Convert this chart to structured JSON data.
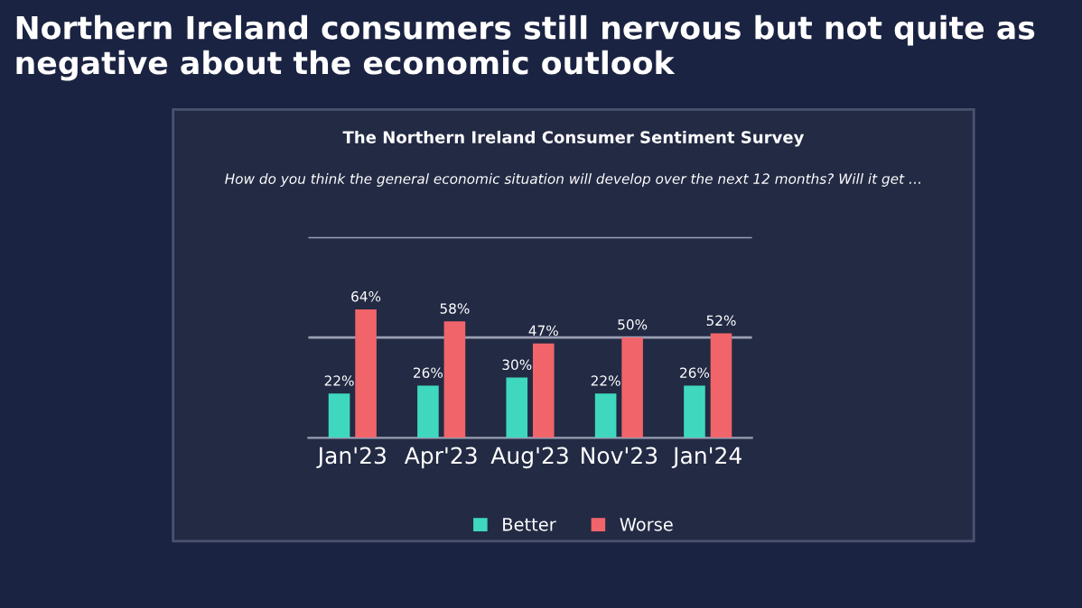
{
  "chart_data": {
    "type": "bar",
    "title": "Northern Ireland consumers still nervous but not quite as negative about the economic outlook",
    "subtitle": "The Northern Ireland Consumer Sentiment Survey",
    "annotations": [
      "How do you think the general economic situation will develop over the next 12 months? Will it get …"
    ],
    "categories": [
      "Jan'23",
      "Apr'23",
      "Aug'23",
      "Nov'23",
      "Jan'24"
    ],
    "series": [
      {
        "name": "Better",
        "color": "#3fd8bf",
        "values": [
          22,
          26,
          30,
          22,
          26
        ],
        "value_labels": [
          "22%",
          "26%",
          "30%",
          "22%",
          "26%"
        ]
      },
      {
        "name": "Worse",
        "color": "#f0646a",
        "values": [
          64,
          58,
          47,
          50,
          52
        ],
        "value_labels": [
          "64%",
          "58%",
          "47%",
          "50%",
          "52%"
        ]
      }
    ],
    "ylim": [
      0,
      100
    ],
    "ref_lines": [
      {
        "axis": "y",
        "value": 50
      },
      {
        "axis": "y",
        "value": 100
      }
    ],
    "legend": "bottom",
    "tick_labels": "x"
  }
}
